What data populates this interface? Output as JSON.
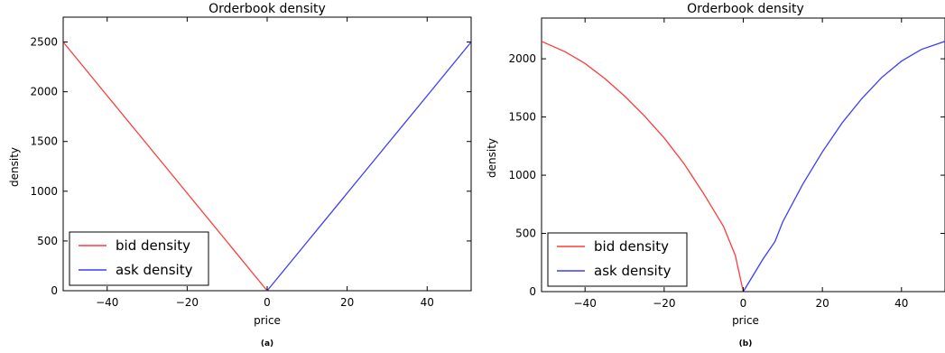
{
  "chart_data": [
    {
      "type": "line",
      "title": "Orderbook density",
      "xlabel": "price",
      "ylabel": "density",
      "caption": "(a)",
      "xlim": [
        -51,
        51
      ],
      "ylim": [
        0,
        2750
      ],
      "xticks": [
        -40,
        -20,
        0,
        20,
        40
      ],
      "yticks": [
        0,
        500,
        1000,
        1500,
        2000,
        2500
      ],
      "legend": "lower-left",
      "grid": false,
      "series": [
        {
          "name": "bid density",
          "color": "#ff3b3b",
          "x": [
            -51,
            -40,
            -30,
            -20,
            -10,
            0
          ],
          "y": [
            2500,
            1960,
            1470,
            980,
            490,
            0
          ]
        },
        {
          "name": "ask density",
          "color": "#3b3bff",
          "x": [
            0,
            10,
            20,
            30,
            40,
            51
          ],
          "y": [
            0,
            490,
            980,
            1470,
            1960,
            2500
          ]
        }
      ]
    },
    {
      "type": "line",
      "title": "Orderbook density",
      "xlabel": "price",
      "ylabel": "density",
      "caption": "(b)",
      "xlim": [
        -51,
        51
      ],
      "ylim": [
        0,
        2350
      ],
      "xticks": [
        -40,
        -20,
        0,
        20,
        40
      ],
      "yticks": [
        0,
        500,
        1000,
        1500,
        2000
      ],
      "legend": "lower-left",
      "grid": false,
      "series": [
        {
          "name": "bid density",
          "color": "#ff3b3b",
          "x": [
            -51,
            -45,
            -40,
            -35,
            -30,
            -25,
            -20,
            -15,
            -10,
            -5,
            -2,
            0
          ],
          "y": [
            2150,
            2060,
            1960,
            1830,
            1680,
            1510,
            1320,
            1100,
            840,
            560,
            310,
            0
          ]
        },
        {
          "name": "ask density",
          "color": "#3b3bff",
          "x": [
            0,
            5,
            8,
            10,
            15,
            20,
            25,
            30,
            35,
            40,
            45,
            51
          ],
          "y": [
            0,
            280,
            430,
            600,
            920,
            1200,
            1450,
            1660,
            1840,
            1980,
            2080,
            2150
          ]
        }
      ]
    }
  ]
}
